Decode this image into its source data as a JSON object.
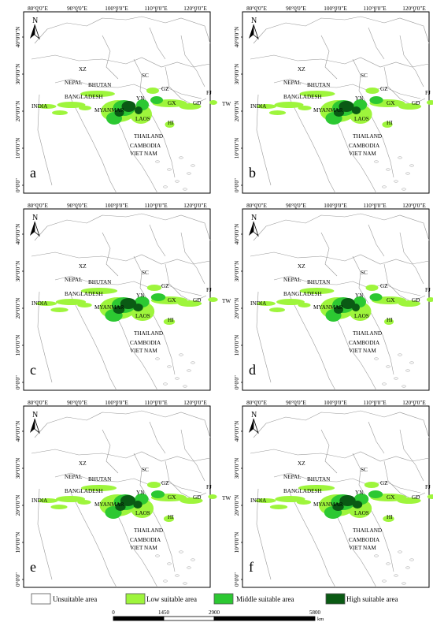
{
  "panels": [
    {
      "letter": "a"
    },
    {
      "letter": "b"
    },
    {
      "letter": "c"
    },
    {
      "letter": "d"
    },
    {
      "letter": "e"
    },
    {
      "letter": "f"
    }
  ],
  "axes": {
    "longitudes": [
      "80°0'0\"E",
      "90°0'0\"E",
      "100°0'0\"E",
      "110°0'0\"E",
      "120°0'0\"E"
    ],
    "latitudes": [
      "40°0'0\"N",
      "30°0'0\"N",
      "20°0'0\"N",
      "10°0'0\"N",
      "0°0'0\""
    ]
  },
  "north_label": "N",
  "place_labels": [
    "XZ",
    "NEPAL",
    "BHUTAN",
    "SC",
    "GZ",
    "FJ",
    "BANGLADESH",
    "GX",
    "GD",
    "TW",
    "INDIA",
    "MYANMAR",
    "LAOS",
    "HI",
    "THAILAND",
    "CAMBODIA",
    "VIET NAM",
    "YN"
  ],
  "legend": {
    "items": [
      {
        "label": "Unsuitable area",
        "color": "#ffffff"
      },
      {
        "label": "Low suitable area",
        "color": "#9ef53c"
      },
      {
        "label": "Middle suitable area",
        "color": "#2cc832"
      },
      {
        "label": "High suitable area",
        "color": "#0a5a14"
      }
    ],
    "scale_ticks": [
      "0",
      "1450",
      "2900",
      "5800"
    ],
    "scale_unit": "km"
  }
}
